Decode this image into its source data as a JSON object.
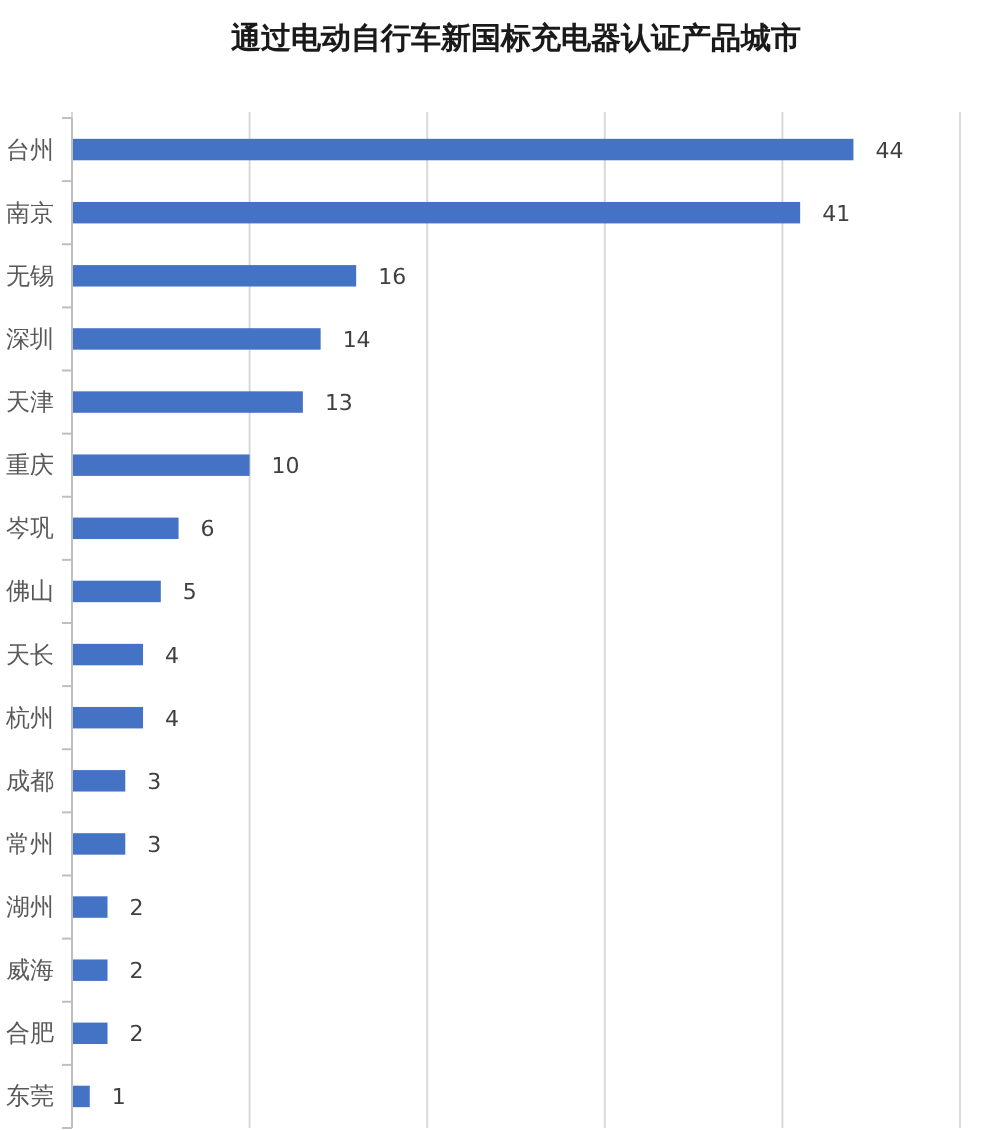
{
  "chart_data": {
    "type": "bar",
    "orientation": "horizontal",
    "title": "通过电动自行车新国标充电器认证产品城市",
    "categories": [
      "台州",
      "南京",
      "无锡",
      "深圳",
      "天津",
      "重庆",
      "岑巩",
      "佛山",
      "天长",
      "杭州",
      "成都",
      "常州",
      "湖州",
      "威海",
      "合肥",
      "东莞"
    ],
    "values": [
      44,
      41,
      16,
      14,
      13,
      10,
      6,
      5,
      4,
      4,
      3,
      3,
      2,
      2,
      2,
      1
    ],
    "color": "#4472c4",
    "xlim": [
      0,
      50
    ],
    "xticks": [
      {
        "value": 0,
        "label": null
      },
      {
        "value": 10,
        "label": null
      },
      {
        "value": 20,
        "label": null
      },
      {
        "value": 30,
        "label": null
      },
      {
        "value": 40,
        "label": null
      },
      {
        "value": 50,
        "label": null
      }
    ],
    "grid": "x",
    "tick_labels": "y",
    "data_labels": true
  }
}
